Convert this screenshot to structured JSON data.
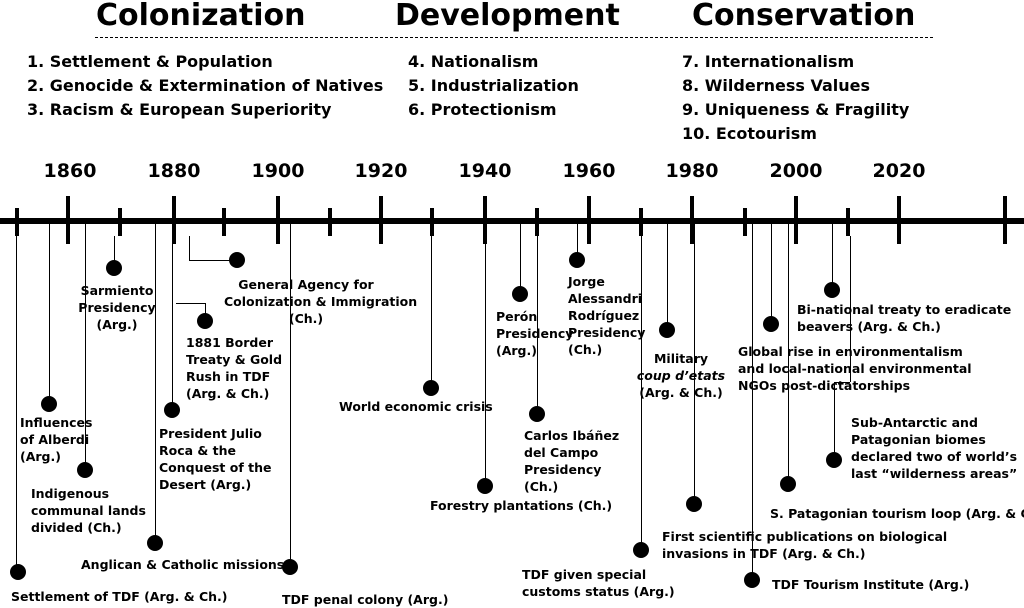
{
  "eras": [
    "Colonization",
    "Development",
    "Conservation"
  ],
  "themes": {
    "colonization": [
      "1. Settlement & Population",
      "2. Genocide & Extermination of Natives",
      "3. Racism & European Superiority"
    ],
    "development": [
      "4. Nationalism",
      "5. Industrialization",
      "6. Protectionism"
    ],
    "conservation": [
      "7.  Internationalism",
      "8.  Wilderness Values",
      "9.  Uniqueness & Fragility",
      "10. Ecotourism"
    ]
  },
  "years": [
    "1860",
    "1880",
    "1900",
    "1920",
    "1940",
    "1960",
    "1980",
    "2000",
    "2020"
  ],
  "events": {
    "settlement_tdf": "Settlement of TDF (Arg. & Ch.)",
    "alberdi": [
      "Influences",
      "of Alberdi",
      "(Arg.)"
    ],
    "indigenous": [
      "Indigenous",
      "communal lands",
      "divided (Ch.)"
    ],
    "sarmiento": [
      "Sarmiento",
      "Presidency",
      "(Arg.)"
    ],
    "missions": "Anglican & Catholic missions",
    "roca": [
      "President Julio",
      "Roca & the",
      "Conquest of the",
      "Desert (Arg.)"
    ],
    "border_1881": [
      "1881 Border",
      "Treaty & Gold",
      "Rush in TDF",
      "(Arg. & Ch.)"
    ],
    "general_agency": [
      "General Agency for",
      "Colonization & Immigration",
      "(Ch.)"
    ],
    "penal_colony": "TDF penal colony (Arg.)",
    "economic_crisis": "World economic crisis",
    "forestry": "Forestry plantations (Ch.)",
    "peron": [
      "Perón",
      "Presidency",
      "(Arg.)"
    ],
    "ibanez": [
      "Carlos Ibáñez",
      "del Campo",
      "Presidency",
      "(Ch.)"
    ],
    "alessandri": [
      "Jorge",
      "Alessandri",
      "Rodríguez",
      "Presidency",
      "(Ch.)"
    ],
    "customs": [
      "TDF given special",
      "customs status (Arg.)"
    ],
    "military": [
      "Military",
      "coup d’etats",
      "(Arg. & Ch.)"
    ],
    "scientific": [
      "First scientific publications on biological",
      "invasions in TDF (Arg. & Ch.)"
    ],
    "tourism_institute": "TDF Tourism Institute (Arg.)",
    "global_rise": [
      "Global rise in environmentalism",
      "and local-national environmental",
      "NGOs post-dictatorships"
    ],
    "beavers": [
      "Bi-national treaty to eradicate",
      "beavers (Arg. & Ch.)"
    ],
    "tourism_loop": "S. Patagonian tourism loop (Arg. & Ch.)",
    "wilderness": [
      "Sub-Antarctic and",
      "Patagonian biomes",
      "declared two of world’s",
      "last “wilderness areas”"
    ]
  }
}
